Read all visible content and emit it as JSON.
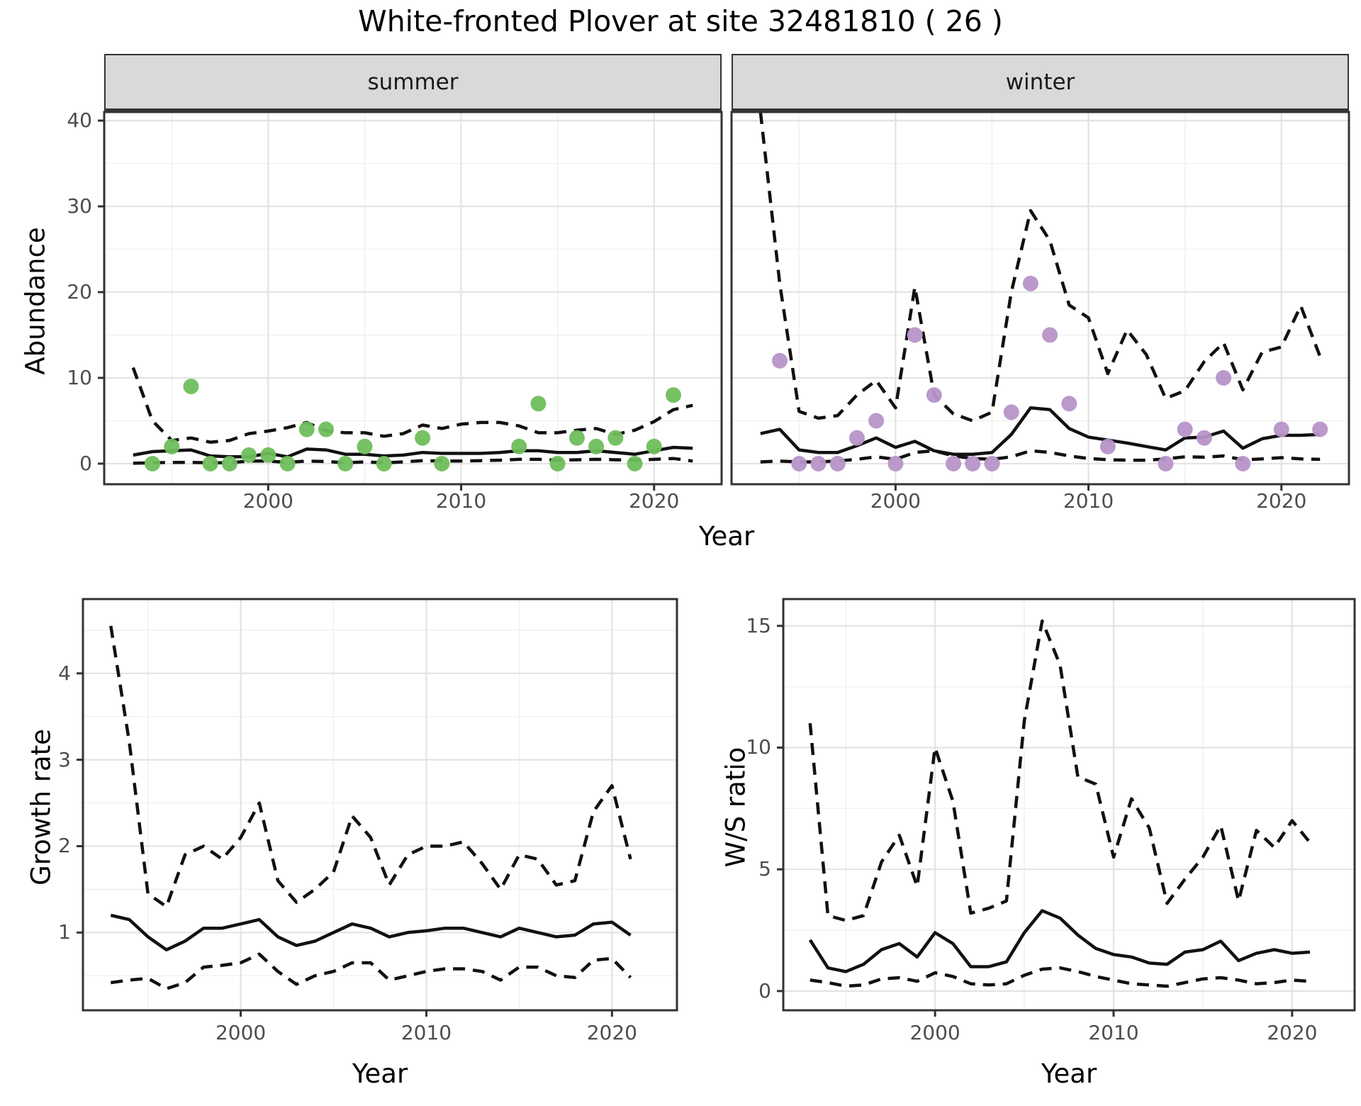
{
  "title": "White-fronted Plover at site 32481810 ( 26 )",
  "colors": {
    "summer_point": "#6FBE5B",
    "winter_point": "#B793C8",
    "line": "#111111",
    "grid_major": "#e3e3e3",
    "grid_minor": "#f1f1f1",
    "strip_fill": "#d9d9d9",
    "panel_border": "#333333",
    "tick_text": "#4d4d4d"
  },
  "top_row": {
    "ylabel": "Abundance",
    "xlabel": "Year"
  },
  "bottom_row": {
    "xlabel": "Year"
  },
  "chart_data": [
    {
      "type": "line",
      "facet_label": "summer",
      "ylabel": "Abundance",
      "xlabel": "Year",
      "xlim": [
        1991.5,
        2023.5
      ],
      "ylim": [
        -2.4,
        41.0
      ],
      "x_ticks": [
        2000,
        2010,
        2020
      ],
      "x_minor": [
        1995,
        2005,
        2015
      ],
      "y_ticks": [
        0,
        10,
        20,
        30,
        40
      ],
      "y_minor": [
        5,
        15,
        25,
        35
      ],
      "grid": true,
      "legend": "none",
      "years": [
        1993,
        1994,
        1995,
        1996,
        1997,
        1998,
        1999,
        2000,
        2001,
        2002,
        2003,
        2004,
        2005,
        2006,
        2007,
        2008,
        2009,
        2010,
        2011,
        2012,
        2013,
        2014,
        2015,
        2016,
        2017,
        2018,
        2019,
        2020,
        2021,
        2022
      ],
      "series": [
        {
          "name": "median",
          "style": "solid",
          "values": [
            1.0,
            1.4,
            1.5,
            1.6,
            0.9,
            0.8,
            0.8,
            1.2,
            0.8,
            1.7,
            1.6,
            1.1,
            1.1,
            0.9,
            1.0,
            1.3,
            1.2,
            1.2,
            1.2,
            1.3,
            1.5,
            1.5,
            1.3,
            1.3,
            1.5,
            1.3,
            1.1,
            1.5,
            1.9,
            1.8
          ]
        },
        {
          "name": "upper_CI",
          "style": "dashed",
          "values": [
            11.2,
            5.0,
            2.7,
            3.0,
            2.5,
            2.7,
            3.5,
            3.8,
            4.2,
            4.8,
            3.8,
            3.6,
            3.6,
            3.2,
            3.5,
            4.5,
            4.1,
            4.6,
            4.8,
            4.8,
            4.4,
            3.6,
            3.6,
            3.9,
            4.1,
            3.4,
            3.9,
            4.9,
            6.3,
            6.8
          ]
        },
        {
          "name": "lower_CI",
          "style": "dashed",
          "values": [
            0.05,
            0.1,
            0.15,
            0.15,
            0.1,
            0.1,
            0.3,
            0.3,
            0.15,
            0.3,
            0.25,
            0.1,
            0.2,
            0.1,
            0.2,
            0.35,
            0.3,
            0.3,
            0.35,
            0.4,
            0.5,
            0.5,
            0.4,
            0.45,
            0.5,
            0.45,
            0.4,
            0.5,
            0.6,
            0.3
          ]
        }
      ],
      "points": {
        "name": "observed-counts-summer",
        "color_key": "summer_point",
        "x": [
          1994,
          1995,
          1996,
          1997,
          1998,
          1999,
          2000,
          2001,
          2002,
          2003,
          2004,
          2005,
          2006,
          2008,
          2009,
          2013,
          2014,
          2015,
          2016,
          2017,
          2018,
          2019,
          2020,
          2021
        ],
        "y": [
          0,
          2,
          9,
          0,
          0,
          1,
          1,
          0,
          4,
          4,
          0,
          2,
          0,
          3,
          0,
          2,
          7,
          0,
          3,
          2,
          3,
          0,
          2,
          8
        ]
      }
    },
    {
      "type": "line",
      "facet_label": "winter",
      "ylabel": "Abundance",
      "xlabel": "Year",
      "xlim": [
        1991.5,
        2023.5
      ],
      "ylim": [
        -2.4,
        41.0
      ],
      "x_ticks": [
        2000,
        2010,
        2020
      ],
      "x_minor": [
        1995,
        2005,
        2015
      ],
      "y_ticks": [
        0,
        10,
        20,
        30,
        40
      ],
      "y_minor": [
        5,
        15,
        25,
        35
      ],
      "grid": true,
      "legend": "none",
      "years": [
        1993,
        1994,
        1995,
        1996,
        1997,
        1998,
        1999,
        2000,
        2001,
        2002,
        2003,
        2004,
        2005,
        2006,
        2007,
        2008,
        2009,
        2010,
        2011,
        2012,
        2013,
        2014,
        2015,
        2016,
        2017,
        2018,
        2019,
        2020,
        2021,
        2022
      ],
      "series": [
        {
          "name": "median",
          "style": "solid",
          "values": [
            3.5,
            4.0,
            1.6,
            1.3,
            1.3,
            2.1,
            3.0,
            1.9,
            2.6,
            1.5,
            1.1,
            1.1,
            1.3,
            3.4,
            6.5,
            6.3,
            4.1,
            3.1,
            2.75,
            2.4,
            2.0,
            1.6,
            3.0,
            3.1,
            3.8,
            1.8,
            2.9,
            3.3,
            3.3,
            3.4
          ]
        },
        {
          "name": "upper_CI",
          "style": "dashed",
          "values": [
            41,
            21,
            6.1,
            5.3,
            5.6,
            8.0,
            9.7,
            6.5,
            20.6,
            8.0,
            5.8,
            5.0,
            6.0,
            20,
            29.5,
            26,
            18.5,
            17,
            10.5,
            15.6,
            12.7,
            7.6,
            8.5,
            11.9,
            14.1,
            8.6,
            13.0,
            13.6,
            18.4,
            12.5
          ]
        },
        {
          "name": "lower_CI",
          "style": "dashed",
          "values": [
            0.2,
            0.3,
            0.2,
            0.2,
            0.3,
            0.5,
            0.8,
            0.5,
            1.3,
            1.5,
            0.9,
            0.6,
            0.5,
            0.8,
            1.5,
            1.3,
            0.9,
            0.6,
            0.45,
            0.4,
            0.4,
            0.55,
            0.8,
            0.75,
            0.9,
            0.45,
            0.55,
            0.7,
            0.55,
            0.5
          ]
        }
      ],
      "points": {
        "name": "observed-counts-winter",
        "color_key": "winter_point",
        "x": [
          1994,
          1995,
          1996,
          1997,
          1998,
          1999,
          2000,
          2001,
          2002,
          2003,
          2004,
          2005,
          2006,
          2007,
          2008,
          2009,
          2011,
          2014,
          2015,
          2016,
          2017,
          2018,
          2020,
          2022
        ],
        "y": [
          12,
          0,
          0,
          0,
          3,
          5,
          0,
          15,
          8,
          0,
          0,
          0,
          6,
          21,
          15,
          7,
          2,
          0,
          4,
          3,
          10,
          0,
          4,
          4
        ]
      }
    },
    {
      "type": "line",
      "facet_label": "",
      "ylabel": "Growth rate",
      "xlabel": "Year",
      "xlim": [
        1991.5,
        2023.5
      ],
      "ylim": [
        0.1,
        4.86
      ],
      "x_ticks": [
        2000,
        2010,
        2020
      ],
      "x_minor": [
        1995,
        2005,
        2015
      ],
      "y_ticks": [
        1,
        2,
        3,
        4
      ],
      "y_minor": [
        0.5,
        1.5,
        2.5,
        3.5,
        4.5
      ],
      "grid": true,
      "legend": "none",
      "years": [
        1993,
        1994,
        1995,
        1996,
        1997,
        1998,
        1999,
        2000,
        2001,
        2002,
        2003,
        2004,
        2005,
        2006,
        2007,
        2008,
        2009,
        2010,
        2011,
        2012,
        2013,
        2014,
        2015,
        2016,
        2017,
        2018,
        2019,
        2020,
        2021
      ],
      "series": [
        {
          "name": "median",
          "style": "solid",
          "values": [
            1.2,
            1.15,
            0.95,
            0.8,
            0.9,
            1.05,
            1.05,
            1.1,
            1.15,
            0.95,
            0.85,
            0.9,
            1.0,
            1.1,
            1.05,
            0.95,
            1.0,
            1.02,
            1.05,
            1.05,
            1.0,
            0.95,
            1.05,
            1.0,
            0.95,
            0.97,
            1.1,
            1.12,
            0.97
          ]
        },
        {
          "name": "upper_CI",
          "style": "dashed",
          "values": [
            4.55,
            3.2,
            1.45,
            1.3,
            1.9,
            2.0,
            1.85,
            2.1,
            2.5,
            1.6,
            1.35,
            1.5,
            1.7,
            2.35,
            2.1,
            1.55,
            1.9,
            2.0,
            2.0,
            2.05,
            1.8,
            1.5,
            1.9,
            1.85,
            1.55,
            1.6,
            2.4,
            2.7,
            1.85
          ]
        },
        {
          "name": "lower_CI",
          "style": "dashed",
          "values": [
            0.42,
            0.45,
            0.47,
            0.35,
            0.42,
            0.6,
            0.62,
            0.65,
            0.75,
            0.55,
            0.4,
            0.5,
            0.55,
            0.65,
            0.65,
            0.45,
            0.5,
            0.55,
            0.58,
            0.58,
            0.55,
            0.45,
            0.6,
            0.6,
            0.5,
            0.48,
            0.68,
            0.7,
            0.48
          ]
        }
      ],
      "points": null
    },
    {
      "type": "line",
      "facet_label": "",
      "ylabel": "W/S ratio",
      "xlabel": "Year",
      "xlim": [
        1991.5,
        2023.5
      ],
      "ylim": [
        -0.79,
        16.1
      ],
      "x_ticks": [
        2000,
        2010,
        2020
      ],
      "x_minor": [
        1995,
        2005,
        2015
      ],
      "y_ticks": [
        0,
        5,
        10,
        15
      ],
      "y_minor": [
        2.5,
        7.5,
        12.5
      ],
      "grid": true,
      "legend": "none",
      "years": [
        1993,
        1994,
        1995,
        1996,
        1997,
        1998,
        1999,
        2000,
        2001,
        2002,
        2003,
        2004,
        2005,
        2006,
        2007,
        2008,
        2009,
        2010,
        2011,
        2012,
        2013,
        2014,
        2015,
        2016,
        2017,
        2018,
        2019,
        2020,
        2021
      ],
      "series": [
        {
          "name": "median",
          "style": "solid",
          "values": [
            2.1,
            0.95,
            0.8,
            1.1,
            1.7,
            1.95,
            1.4,
            2.4,
            1.95,
            1.0,
            1.0,
            1.2,
            2.4,
            3.3,
            3.0,
            2.3,
            1.75,
            1.5,
            1.4,
            1.15,
            1.1,
            1.6,
            1.7,
            2.05,
            1.25,
            1.55,
            1.7,
            1.55,
            1.6
          ]
        },
        {
          "name": "upper_CI",
          "style": "dashed",
          "values": [
            11.0,
            3.1,
            2.9,
            3.1,
            5.3,
            6.4,
            4.3,
            10.0,
            7.8,
            3.2,
            3.4,
            3.7,
            11.1,
            15.2,
            13.4,
            8.8,
            8.5,
            5.5,
            7.9,
            6.7,
            3.6,
            4.6,
            5.5,
            6.8,
            3.7,
            6.6,
            5.9,
            7.0,
            6.1
          ]
        },
        {
          "name": "lower_CI",
          "style": "dashed",
          "values": [
            0.45,
            0.35,
            0.2,
            0.25,
            0.5,
            0.55,
            0.4,
            0.75,
            0.6,
            0.3,
            0.25,
            0.3,
            0.65,
            0.9,
            0.95,
            0.8,
            0.6,
            0.45,
            0.3,
            0.25,
            0.2,
            0.35,
            0.5,
            0.55,
            0.45,
            0.3,
            0.35,
            0.45,
            0.4
          ]
        }
      ],
      "points": null
    }
  ]
}
